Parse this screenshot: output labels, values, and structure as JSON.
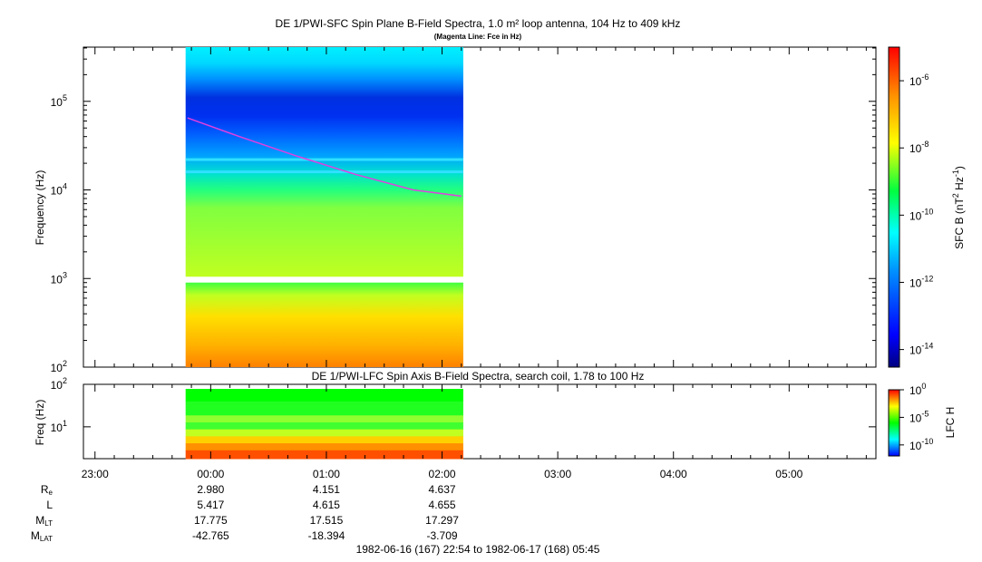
{
  "chart_data": [
    {
      "type": "heatmap",
      "title": "DE 1/PWI-SFC  Spin Plane B-Field Spectra, 1.0 m² loop antenna, 104 Hz to 409 kHz",
      "subtitle": "(Magenta Line: Fce in Hz)",
      "ylabel": "Frequency (Hz)",
      "yscale": "log",
      "ylim": [
        100,
        409000
      ],
      "y_ticks": [
        {
          "base": "10",
          "exp": "2",
          "value": 100
        },
        {
          "base": "10",
          "exp": "3",
          "value": 1000
        },
        {
          "base": "10",
          "exp": "4",
          "value": 10000
        },
        {
          "base": "10",
          "exp": "5",
          "value": 100000
        }
      ],
      "colorbar": {
        "label_main": "SFC B (nT",
        "label_exp1": "2",
        "label_mid": " Hz",
        "label_exp2": "-1",
        "label_end": ")",
        "scale": "log",
        "range": [
          3e-15,
          1e-05
        ],
        "ticks": [
          {
            "base": "10",
            "exp": "-6",
            "value": 1e-06
          },
          {
            "base": "10",
            "exp": "-8",
            "value": 1e-08
          },
          {
            "base": "10",
            "exp": "-10",
            "value": 1e-10
          },
          {
            "base": "10",
            "exp": "-12",
            "value": 1e-12
          },
          {
            "base": "10",
            "exp": "-14",
            "value": 1e-14
          }
        ]
      },
      "data_time_range": [
        "23:47",
        "02:11"
      ],
      "fce_line": {
        "color": "#e040e0",
        "points": [
          [
            "23:48",
            65000
          ],
          [
            "00:15",
            40000
          ],
          [
            "00:45",
            24000
          ],
          [
            "01:15",
            15000
          ],
          [
            "01:45",
            10000
          ],
          [
            "02:10",
            8500
          ]
        ]
      }
    },
    {
      "type": "heatmap",
      "title": "DE 1/PWI-LFC  Spin Axis B-Field Spectra, search coil, 1.78 to 100 Hz",
      "ylabel": "Freq (Hz)",
      "yscale": "log",
      "ylim": [
        1.78,
        100
      ],
      "y_ticks": [
        {
          "base": "10",
          "exp": "2",
          "value": 100
        },
        {
          "base": "10",
          "exp": "1",
          "value": 10
        }
      ],
      "colorbar": {
        "label": "LFC H",
        "scale": "log",
        "range": [
          1e-12,
          1
        ],
        "ticks": [
          {
            "base": "10",
            "exp": "0",
            "value": 1
          },
          {
            "base": "10",
            "exp": "-5",
            "value": 1e-05
          },
          {
            "base": "10",
            "exp": "-10",
            "value": 1e-10
          }
        ]
      },
      "data_time_range": [
        "23:47",
        "02:11"
      ]
    }
  ],
  "time_axis": {
    "range": [
      "22:54",
      "05:45"
    ],
    "ticks": [
      "23:00",
      "00:00",
      "01:00",
      "02:00",
      "03:00",
      "04:00",
      "05:00"
    ]
  },
  "ephemeris": {
    "rows": [
      {
        "label": "R",
        "sub": "e",
        "values": [
          "2.980",
          "4.151",
          "4.637"
        ]
      },
      {
        "label": "L",
        "sub": "",
        "values": [
          "5.417",
          "4.615",
          "4.655"
        ]
      },
      {
        "label": "M",
        "sub": "LT",
        "values": [
          "17.775",
          "17.515",
          "17.297"
        ]
      },
      {
        "label": "M",
        "sub": "LAT",
        "values": [
          "-42.765",
          "-18.394",
          "-3.709"
        ]
      }
    ],
    "times": [
      "00:00",
      "01:00",
      "02:00"
    ]
  },
  "footer": "1982-06-16 (167) 22:54 to 1982-06-17 (168) 05:45"
}
